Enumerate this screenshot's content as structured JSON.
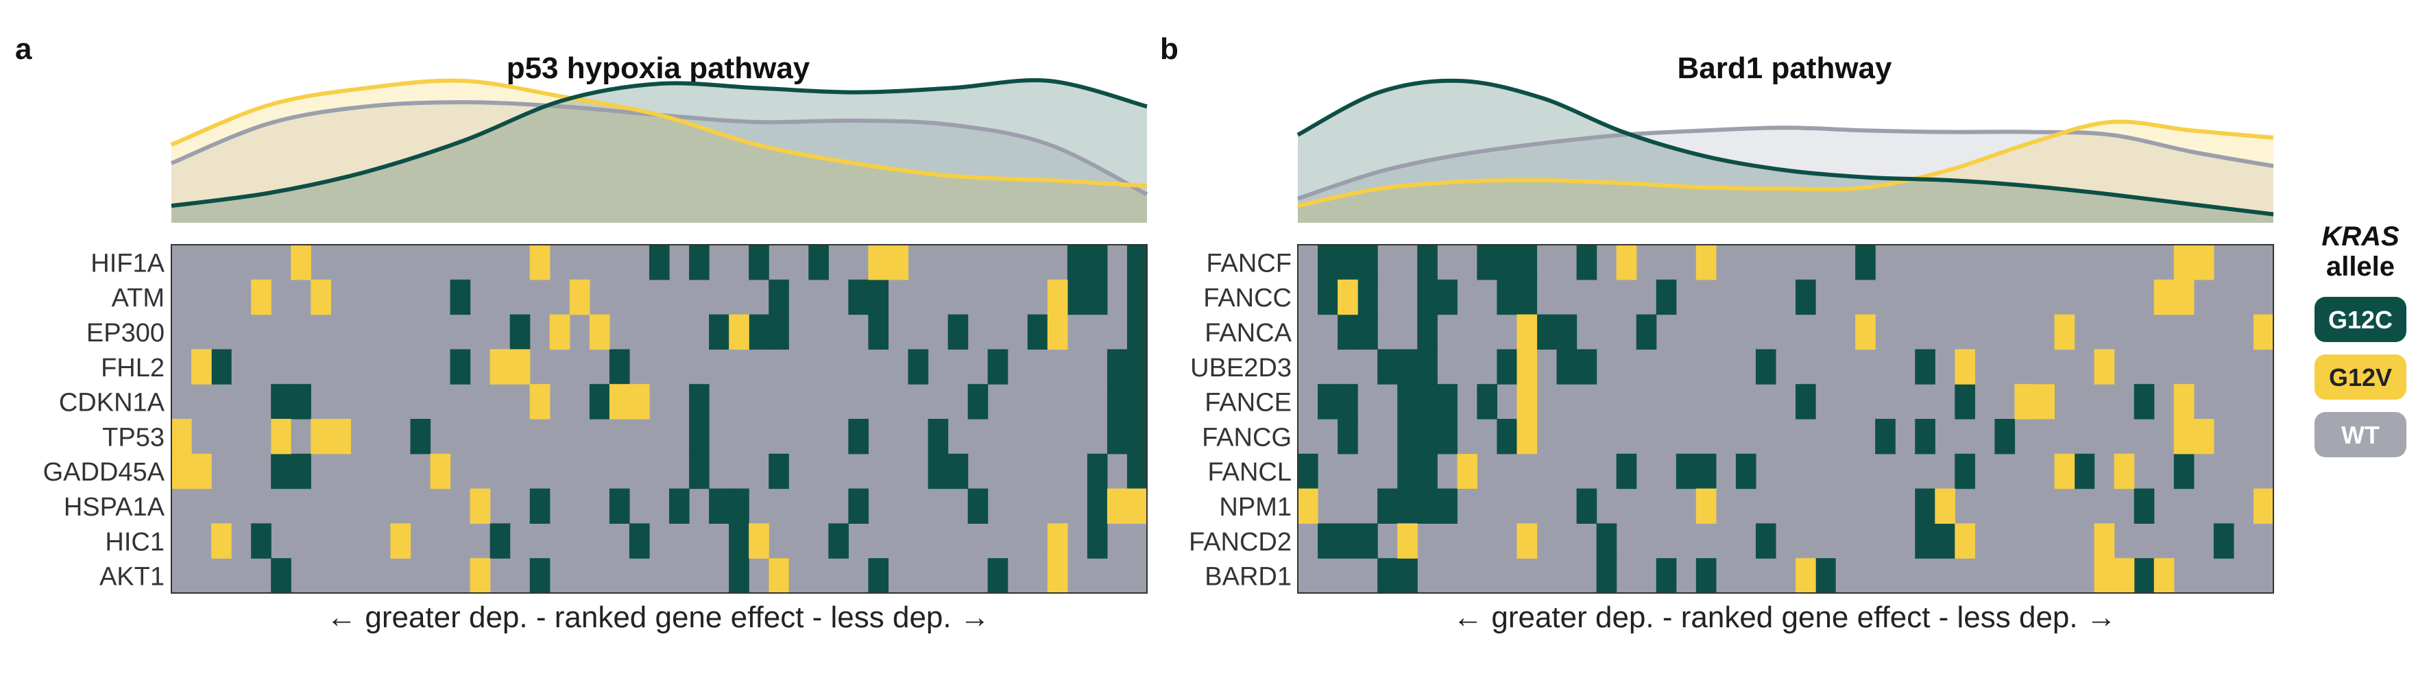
{
  "colors": {
    "G12C": "#0d4f46",
    "G12V": "#f7cf45",
    "WT": "#9c9fab",
    "WT_light": "#a4a6b0"
  },
  "legend": {
    "title_italic": "KRAS",
    "title_rest": "allele",
    "items": [
      {
        "label": "G12C",
        "color": "#0d4f46",
        "text_color": "#ffffff"
      },
      {
        "label": "G12V",
        "color": "#f7cf45",
        "text_color": "#222222"
      },
      {
        "label": "WT",
        "color": "#a4a6b0",
        "text_color": "#ffffff"
      }
    ]
  },
  "chart_data": [
    {
      "type": "heatmap",
      "panel_letter": "a",
      "title": "p53 hypoxia pathway",
      "xlabel": "← greater dep. - ranked gene effect - less dep. →",
      "n_columns": 49,
      "rows": [
        "HIF1A",
        "ATM",
        "EP300",
        "FHL2",
        "CDKN1A",
        "TP53",
        "GADD45A",
        "HSPA1A",
        "HIC1",
        "AKT1"
      ],
      "cells": {
        "G12C": [
          [
            0,
            24
          ],
          [
            0,
            26
          ],
          [
            0,
            29
          ],
          [
            0,
            32
          ],
          [
            0,
            45
          ],
          [
            0,
            46
          ],
          [
            0,
            48
          ],
          [
            1,
            14
          ],
          [
            1,
            30
          ],
          [
            1,
            34
          ],
          [
            1,
            35
          ],
          [
            1,
            45
          ],
          [
            1,
            46
          ],
          [
            1,
            48
          ],
          [
            2,
            17
          ],
          [
            2,
            27
          ],
          [
            2,
            29
          ],
          [
            2,
            30
          ],
          [
            2,
            35
          ],
          [
            2,
            39
          ],
          [
            2,
            43
          ],
          [
            2,
            48
          ],
          [
            3,
            2
          ],
          [
            3,
            14
          ],
          [
            3,
            22
          ],
          [
            3,
            37
          ],
          [
            3,
            41
          ],
          [
            3,
            47
          ],
          [
            3,
            48
          ],
          [
            4,
            5
          ],
          [
            4,
            6
          ],
          [
            4,
            21
          ],
          [
            4,
            26
          ],
          [
            4,
            40
          ],
          [
            4,
            47
          ],
          [
            4,
            48
          ],
          [
            5,
            5
          ],
          [
            5,
            12
          ],
          [
            5,
            26
          ],
          [
            5,
            34
          ],
          [
            5,
            38
          ],
          [
            5,
            47
          ],
          [
            5,
            48
          ],
          [
            6,
            5
          ],
          [
            6,
            6
          ],
          [
            6,
            26
          ],
          [
            6,
            30
          ],
          [
            6,
            38
          ],
          [
            6,
            39
          ],
          [
            6,
            46
          ],
          [
            6,
            48
          ],
          [
            7,
            18
          ],
          [
            7,
            22
          ],
          [
            7,
            25
          ],
          [
            7,
            27
          ],
          [
            7,
            28
          ],
          [
            7,
            34
          ],
          [
            7,
            40
          ],
          [
            7,
            46
          ],
          [
            8,
            4
          ],
          [
            8,
            16
          ],
          [
            8,
            23
          ],
          [
            8,
            28
          ],
          [
            8,
            33
          ],
          [
            8,
            46
          ],
          [
            9,
            5
          ],
          [
            9,
            18
          ],
          [
            9,
            28
          ],
          [
            9,
            30
          ],
          [
            9,
            35
          ],
          [
            9,
            41
          ]
        ],
        "G12V": [
          [
            0,
            6
          ],
          [
            0,
            18
          ],
          [
            0,
            35
          ],
          [
            0,
            36
          ],
          [
            1,
            4
          ],
          [
            1,
            7
          ],
          [
            1,
            20
          ],
          [
            1,
            44
          ],
          [
            2,
            19
          ],
          [
            2,
            21
          ],
          [
            2,
            28
          ],
          [
            2,
            44
          ],
          [
            3,
            1
          ],
          [
            3,
            16
          ],
          [
            3,
            17
          ],
          [
            4,
            18
          ],
          [
            4,
            22
          ],
          [
            4,
            23
          ],
          [
            5,
            0
          ],
          [
            5,
            5
          ],
          [
            5,
            7
          ],
          [
            5,
            8
          ],
          [
            6,
            0
          ],
          [
            6,
            1
          ],
          [
            6,
            13
          ],
          [
            7,
            15
          ],
          [
            7,
            47
          ],
          [
            7,
            48
          ],
          [
            8,
            2
          ],
          [
            8,
            11
          ],
          [
            8,
            29
          ],
          [
            8,
            44
          ],
          [
            9,
            15
          ],
          [
            9,
            30
          ],
          [
            9,
            44
          ]
        ],
        "density": {
          "G12C": [
            0.12,
            0.21,
            0.36,
            0.58,
            0.86,
            0.98,
            0.95,
            0.92,
            0.95,
            1.0,
            0.82
          ],
          "G12V": [
            0.55,
            0.83,
            0.95,
            1.0,
            0.89,
            0.76,
            0.55,
            0.42,
            0.33,
            0.3,
            0.26
          ],
          "WT": [
            0.42,
            0.7,
            0.82,
            0.85,
            0.82,
            0.76,
            0.71,
            0.72,
            0.69,
            0.55,
            0.2
          ]
        }
      }
    },
    {
      "type": "heatmap",
      "panel_letter": "b",
      "title": "Bard1 pathway",
      "xlabel": "← greater dep. - ranked gene effect - less dep. →",
      "n_columns": 49,
      "rows": [
        "FANCF",
        "FANCC",
        "FANCA",
        "UBE2D3",
        "FANCE",
        "FANCG",
        "FANCL",
        "NPM1",
        "FANCD2",
        "BARD1"
      ],
      "cells": {
        "G12C": [
          [
            0,
            1
          ],
          [
            0,
            2
          ],
          [
            0,
            3
          ],
          [
            0,
            6
          ],
          [
            0,
            9
          ],
          [
            0,
            10
          ],
          [
            0,
            11
          ],
          [
            0,
            14
          ],
          [
            0,
            28
          ],
          [
            1,
            1
          ],
          [
            1,
            3
          ],
          [
            1,
            6
          ],
          [
            1,
            7
          ],
          [
            1,
            10
          ],
          [
            1,
            11
          ],
          [
            1,
            18
          ],
          [
            1,
            25
          ],
          [
            2,
            2
          ],
          [
            2,
            3
          ],
          [
            2,
            6
          ],
          [
            2,
            12
          ],
          [
            2,
            13
          ],
          [
            2,
            17
          ],
          [
            3,
            4
          ],
          [
            3,
            5
          ],
          [
            3,
            6
          ],
          [
            3,
            10
          ],
          [
            3,
            13
          ],
          [
            3,
            14
          ],
          [
            3,
            23
          ],
          [
            3,
            31
          ],
          [
            4,
            1
          ],
          [
            4,
            2
          ],
          [
            4,
            5
          ],
          [
            4,
            6
          ],
          [
            4,
            7
          ],
          [
            4,
            9
          ],
          [
            4,
            25
          ],
          [
            4,
            33
          ],
          [
            4,
            37
          ],
          [
            4,
            42
          ],
          [
            5,
            2
          ],
          [
            5,
            5
          ],
          [
            5,
            6
          ],
          [
            5,
            7
          ],
          [
            5,
            10
          ],
          [
            5,
            29
          ],
          [
            5,
            31
          ],
          [
            5,
            35
          ],
          [
            6,
            0
          ],
          [
            6,
            5
          ],
          [
            6,
            6
          ],
          [
            6,
            8
          ],
          [
            6,
            16
          ],
          [
            6,
            19
          ],
          [
            6,
            20
          ],
          [
            6,
            22
          ],
          [
            6,
            33
          ],
          [
            6,
            39
          ],
          [
            6,
            44
          ],
          [
            7,
            4
          ],
          [
            7,
            5
          ],
          [
            7,
            6
          ],
          [
            7,
            7
          ],
          [
            7,
            14
          ],
          [
            7,
            31
          ],
          [
            7,
            42
          ],
          [
            8,
            1
          ],
          [
            8,
            2
          ],
          [
            8,
            3
          ],
          [
            8,
            15
          ],
          [
            8,
            23
          ],
          [
            8,
            31
          ],
          [
            8,
            32
          ],
          [
            8,
            46
          ],
          [
            9,
            4
          ],
          [
            9,
            5
          ],
          [
            9,
            15
          ],
          [
            9,
            18
          ],
          [
            9,
            20
          ],
          [
            9,
            26
          ],
          [
            9,
            42
          ]
        ],
        "G12V": [
          [
            0,
            16
          ],
          [
            0,
            20
          ],
          [
            0,
            44
          ],
          [
            0,
            45
          ],
          [
            1,
            2
          ],
          [
            1,
            43
          ],
          [
            1,
            44
          ],
          [
            2,
            11
          ],
          [
            2,
            28
          ],
          [
            2,
            38
          ],
          [
            2,
            48
          ],
          [
            3,
            11
          ],
          [
            3,
            33
          ],
          [
            3,
            40
          ],
          [
            4,
            11
          ],
          [
            4,
            36
          ],
          [
            4,
            37
          ],
          [
            4,
            44
          ],
          [
            5,
            11
          ],
          [
            5,
            44
          ],
          [
            5,
            45
          ],
          [
            6,
            8
          ],
          [
            6,
            38
          ],
          [
            6,
            41
          ],
          [
            7,
            0
          ],
          [
            7,
            20
          ],
          [
            7,
            32
          ],
          [
            7,
            48
          ],
          [
            8,
            5
          ],
          [
            8,
            11
          ],
          [
            8,
            33
          ],
          [
            8,
            40
          ],
          [
            9,
            25
          ],
          [
            9,
            40
          ],
          [
            9,
            41
          ],
          [
            9,
            43
          ]
        ],
        "density": {
          "G12C": [
            0.62,
            0.92,
            1.0,
            0.88,
            0.64,
            0.47,
            0.37,
            0.32,
            0.3,
            0.26,
            0.2,
            0.13,
            0.06
          ],
          "G12V": [
            0.12,
            0.24,
            0.29,
            0.3,
            0.28,
            0.25,
            0.24,
            0.25,
            0.37,
            0.56,
            0.71,
            0.65,
            0.6
          ],
          "WT": [
            0.17,
            0.36,
            0.48,
            0.56,
            0.62,
            0.65,
            0.67,
            0.65,
            0.64,
            0.64,
            0.62,
            0.5,
            0.4
          ]
        }
      }
    }
  ]
}
